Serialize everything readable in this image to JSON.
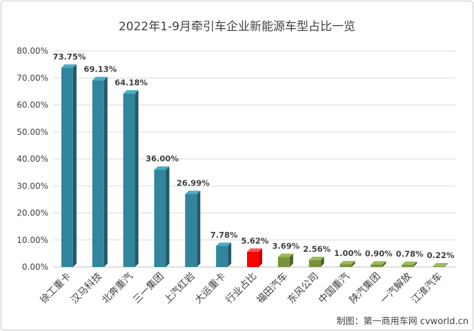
{
  "chart_data": {
    "type": "bar",
    "title": "2022年1-9月牵引车企业新能源车型占比一览",
    "categories": [
      "徐工重卡",
      "汉马科技",
      "北奔重汽",
      "三一集团",
      "上汽红岩",
      "大运重卡",
      "行业占比",
      "福田汽车",
      "东风公司",
      "中国重汽",
      "陕汽集团",
      "一汽解放",
      "江淮汽车"
    ],
    "values": [
      73.75,
      69.13,
      64.18,
      36.0,
      26.99,
      7.78,
      5.62,
      3.69,
      2.56,
      1.0,
      0.9,
      0.78,
      0.22
    ],
    "data_labels": [
      "73.75%",
      "69.13%",
      "64.18%",
      "36.00%",
      "26.99%",
      "7.78%",
      "5.62%",
      "3.69%",
      "2.56%",
      "1.00%",
      "0.90%",
      "0.78%",
      "0.22%"
    ],
    "ylim": [
      0,
      80
    ],
    "yticks": [
      "0.00%",
      "10.00%",
      "20.00%",
      "30.00%",
      "40.00%",
      "50.00%",
      "60.00%",
      "70.00%",
      "80.00%"
    ],
    "xlabel": "",
    "ylabel": "",
    "grid": true,
    "legend": "none"
  },
  "colors": {
    "highlight_bar": "#ff0000",
    "highlight_label": "#ff0000"
  },
  "credit": "制图：第一商用车网 cvworld.cn"
}
